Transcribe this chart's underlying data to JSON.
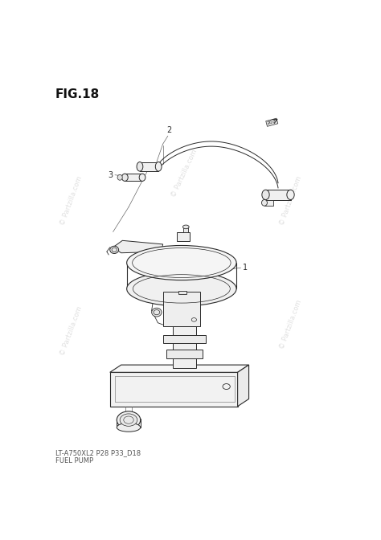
{
  "title": "FIG.18",
  "subtitle1": "LT-A750XL2 P28 P33_D18",
  "subtitle2": "FUEL PUMP",
  "watermark": "© Partzilla.com",
  "background": "#ffffff",
  "label1": "1",
  "label2": "2",
  "label3": "3",
  "edge_color": "#2a2a2a",
  "light_color": "#666666",
  "wm_color": "#bbbbbb",
  "title_fontsize": 11,
  "label_fontsize": 7,
  "sub_fontsize": 6
}
